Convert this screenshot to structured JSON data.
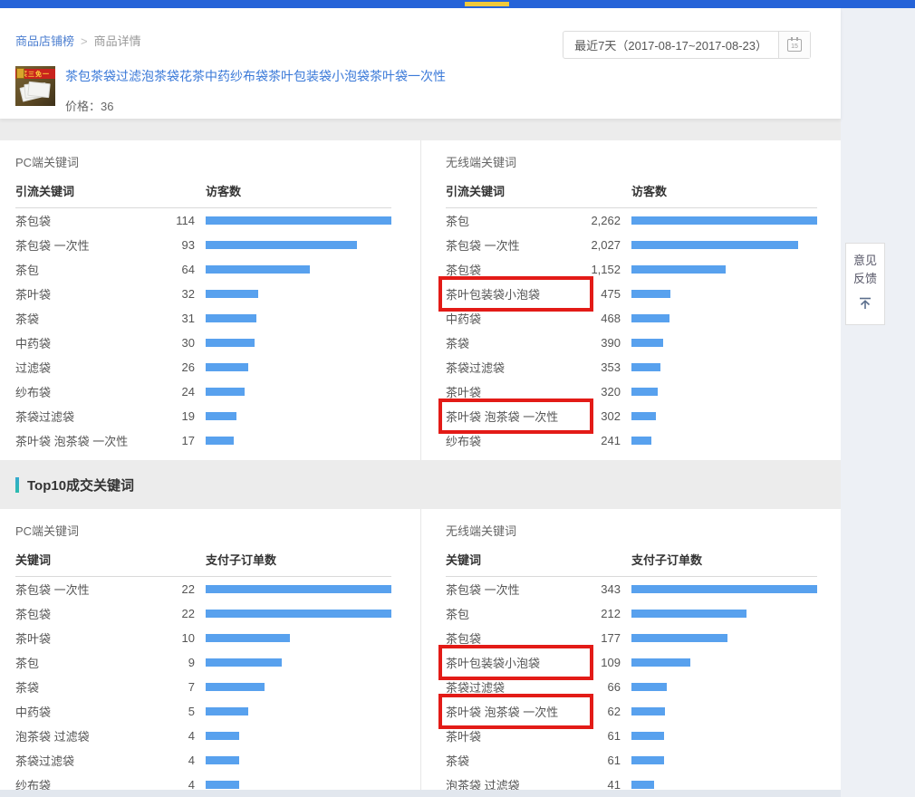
{
  "header": {
    "breadcrumb": {
      "root": "商品店铺榜",
      "separator": ">",
      "current": "商品详情"
    },
    "product": {
      "badge": "买三免一",
      "title": "茶包茶袋过滤泡茶袋花茶中药纱布袋茶叶包装袋小泡袋茶叶袋一次性",
      "price": "价格：36"
    },
    "date_filter": {
      "label": "最近7天（2017-08-17~2017-08-23）",
      "calendar_day": "15"
    }
  },
  "traffic": {
    "pc": {
      "title": "PC端关键词",
      "col_keyword": "引流关键词",
      "col_value": "访客数",
      "rows": [
        {
          "keyword": "茶包袋",
          "display": "114",
          "value": 114
        },
        {
          "keyword": "茶包袋 一次性",
          "display": "93",
          "value": 93
        },
        {
          "keyword": "茶包",
          "display": "64",
          "value": 64
        },
        {
          "keyword": "茶叶袋",
          "display": "32",
          "value": 32
        },
        {
          "keyword": "茶袋",
          "display": "31",
          "value": 31
        },
        {
          "keyword": "中药袋",
          "display": "30",
          "value": 30
        },
        {
          "keyword": "过滤袋",
          "display": "26",
          "value": 26
        },
        {
          "keyword": "纱布袋",
          "display": "24",
          "value": 24
        },
        {
          "keyword": "茶袋过滤袋",
          "display": "19",
          "value": 19
        },
        {
          "keyword": "茶叶袋 泡茶袋 一次性",
          "display": "17",
          "value": 17
        }
      ]
    },
    "wireless": {
      "title": "无线端关键词",
      "col_keyword": "引流关键词",
      "col_value": "访客数",
      "rows": [
        {
          "keyword": "茶包",
          "display": "2,262",
          "value": 2262
        },
        {
          "keyword": "茶包袋 一次性",
          "display": "2,027",
          "value": 2027
        },
        {
          "keyword": "茶包袋",
          "display": "1,152",
          "value": 1152
        },
        {
          "keyword": "茶叶包装袋小泡袋",
          "display": "475",
          "value": 475,
          "highlight": true
        },
        {
          "keyword": "中药袋",
          "display": "468",
          "value": 468
        },
        {
          "keyword": "茶袋",
          "display": "390",
          "value": 390
        },
        {
          "keyword": "茶袋过滤袋",
          "display": "353",
          "value": 353
        },
        {
          "keyword": "茶叶袋",
          "display": "320",
          "value": 320
        },
        {
          "keyword": "茶叶袋 泡茶袋 一次性",
          "display": "302",
          "value": 302,
          "highlight": true
        },
        {
          "keyword": "纱布袋",
          "display": "241",
          "value": 241
        }
      ]
    }
  },
  "deals": {
    "section_title": "Top10成交关键词",
    "pc": {
      "title": "PC端关键词",
      "col_keyword": "关键词",
      "col_value": "支付子订单数",
      "rows": [
        {
          "keyword": "茶包袋 一次性",
          "display": "22",
          "value": 22
        },
        {
          "keyword": "茶包袋",
          "display": "22",
          "value": 22
        },
        {
          "keyword": "茶叶袋",
          "display": "10",
          "value": 10
        },
        {
          "keyword": "茶包",
          "display": "9",
          "value": 9
        },
        {
          "keyword": "茶袋",
          "display": "7",
          "value": 7
        },
        {
          "keyword": "中药袋",
          "display": "5",
          "value": 5
        },
        {
          "keyword": "泡茶袋 过滤袋",
          "display": "4",
          "value": 4
        },
        {
          "keyword": "茶袋过滤袋",
          "display": "4",
          "value": 4
        },
        {
          "keyword": "纱布袋",
          "display": "4",
          "value": 4
        }
      ]
    },
    "wireless": {
      "title": "无线端关键词",
      "col_keyword": "关键词",
      "col_value": "支付子订单数",
      "rows": [
        {
          "keyword": "茶包袋 一次性",
          "display": "343",
          "value": 343
        },
        {
          "keyword": "茶包",
          "display": "212",
          "value": 212
        },
        {
          "keyword": "茶包袋",
          "display": "177",
          "value": 177
        },
        {
          "keyword": "茶叶包装袋小泡袋",
          "display": "109",
          "value": 109,
          "highlight": true
        },
        {
          "keyword": "茶袋过滤袋",
          "display": "66",
          "value": 66
        },
        {
          "keyword": "茶叶袋 泡茶袋 一次性",
          "display": "62",
          "value": 62,
          "highlight": true
        },
        {
          "keyword": "茶叶袋",
          "display": "61",
          "value": 61
        },
        {
          "keyword": "茶袋",
          "display": "61",
          "value": 61
        },
        {
          "keyword": "泡茶袋 过滤袋",
          "display": "41",
          "value": 41
        }
      ]
    }
  },
  "feedback": {
    "line1": "意见",
    "line2": "反馈"
  },
  "colors": {
    "bar": "#58a1ee",
    "highlight_box": "#e31b17",
    "topbar": "#2563d8",
    "topbar_accent": "#f0c93b",
    "section_accent": "#2bbcae"
  }
}
